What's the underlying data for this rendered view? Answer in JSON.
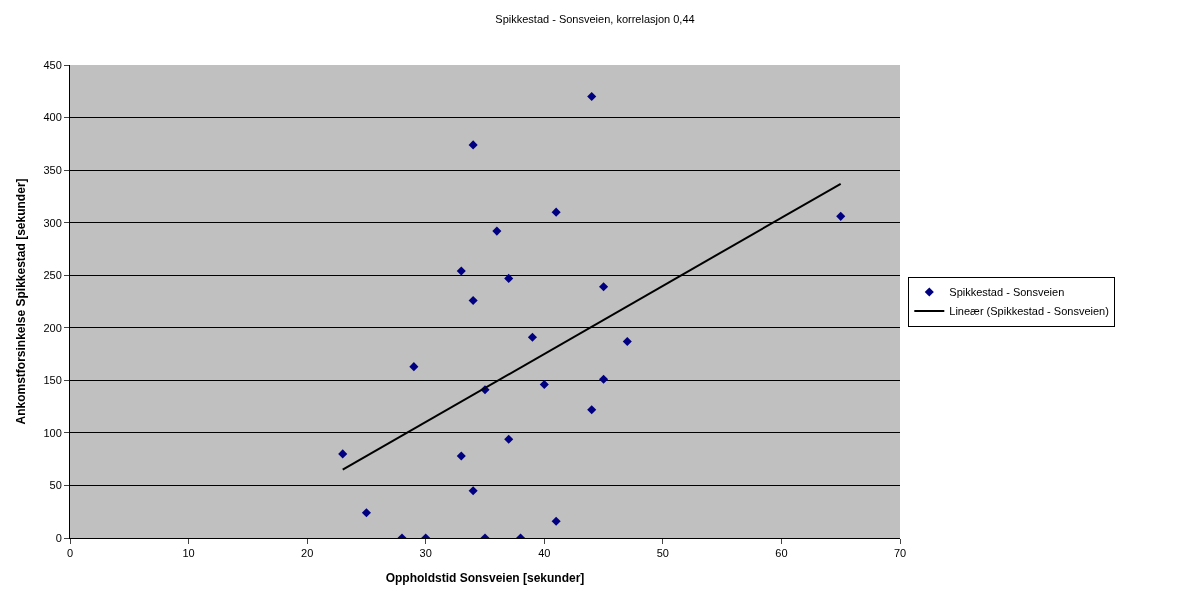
{
  "chart_data": {
    "type": "scatter",
    "title": "Spikkestad - Sonsveien, korrelasjon 0,44",
    "xlabel": "Oppholdstid Sonsveien [sekunder]",
    "ylabel": "Ankomstforsinkelse Spikkestad [sekunder]",
    "series": [
      {
        "name": "Spikkestad - Sonsveien",
        "color": "#000080",
        "marker": "diamond",
        "x": [
          23,
          25,
          28,
          29,
          30,
          33,
          33,
          34,
          34,
          34,
          35,
          35,
          36,
          37,
          37,
          38,
          39,
          40,
          41,
          41,
          44,
          44,
          45,
          45,
          47,
          65
        ],
        "values": [
          80,
          24,
          0,
          163,
          0,
          254,
          78,
          374,
          226,
          45,
          141,
          0,
          292,
          247,
          94,
          0,
          191,
          146,
          310,
          16,
          420,
          122,
          239,
          151,
          187,
          306
        ]
      },
      {
        "name": "Lineær (Spikkestad - Sonsveien)",
        "color": "#000000",
        "type": "line",
        "marker": "none",
        "line_style": "solid",
        "x": [
          23,
          65
        ],
        "values": [
          65,
          337
        ]
      }
    ],
    "xlim": [
      0,
      70
    ],
    "xticks": [
      0,
      10,
      20,
      30,
      40,
      50,
      60,
      70
    ],
    "ylim": [
      0,
      450
    ],
    "yticks": [
      0,
      50,
      100,
      150,
      200,
      250,
      300,
      350,
      400,
      450
    ],
    "grid": "y",
    "legend": "right"
  }
}
